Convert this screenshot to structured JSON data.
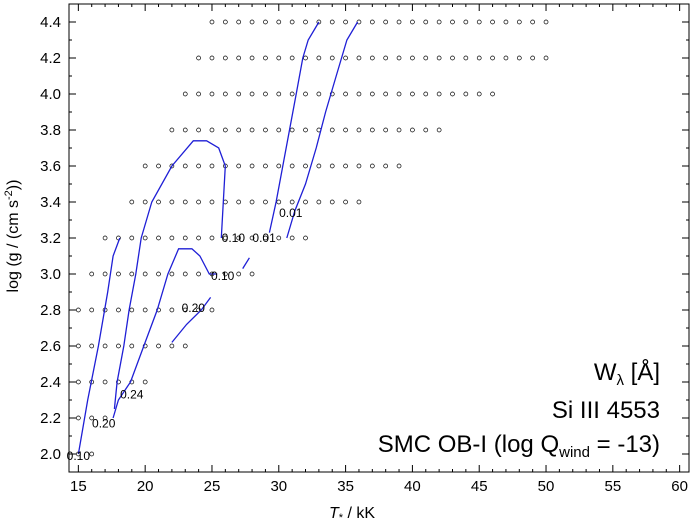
{
  "chart_data": {
    "type": "scatter",
    "xlabel_main": "T",
    "xlabel_sub": "*",
    "xlabel_rest": " / kK",
    "ylabel": "log (g / (cm s",
    "ylabel_sup": "-2",
    "ylabel_end": "))",
    "xlim": [
      14.3,
      60.7
    ],
    "ylim": [
      1.9,
      4.5
    ],
    "xticks": [
      "15",
      "20",
      "25",
      "30",
      "35",
      "40",
      "45",
      "50",
      "55",
      "60"
    ],
    "xtick_values": [
      15,
      20,
      25,
      30,
      35,
      40,
      45,
      50,
      55,
      60
    ],
    "yticks": [
      "2.0",
      "2.2",
      "2.4",
      "2.6",
      "2.8",
      "3.0",
      "3.2",
      "3.4",
      "3.6",
      "3.8",
      "4.0",
      "4.2",
      "4.4"
    ],
    "ytick_values": [
      2.0,
      2.2,
      2.4,
      2.6,
      2.8,
      3.0,
      3.2,
      3.4,
      3.6,
      3.8,
      4.0,
      4.2,
      4.4
    ],
    "grid": false,
    "annotation": {
      "line1_main": "W",
      "line1_sub": "λ",
      "line1_unit": " [Å]",
      "line2": "Si III 4553",
      "line3_main": "SMC OB-I (log Q",
      "line3_sub": "wind",
      "line3_end": " = -13)"
    },
    "grid_points": [
      {
        "y": 4.4,
        "x_start": 25,
        "x_end": 50
      },
      {
        "y": 4.2,
        "x_start": 24,
        "x_end": 50
      },
      {
        "y": 4.0,
        "x_start": 23,
        "x_end": 46
      },
      {
        "y": 3.8,
        "x_start": 22,
        "x_end": 42
      },
      {
        "y": 3.6,
        "x_start": 20,
        "x_end": 39
      },
      {
        "y": 3.4,
        "x_start": 19,
        "x_end": 36
      },
      {
        "y": 3.2,
        "x_start": 17,
        "x_end": 32
      },
      {
        "y": 3.0,
        "x_start": 16,
        "x_end": 28
      },
      {
        "y": 2.8,
        "x_start": 15,
        "x_end": 25
      },
      {
        "y": 2.6,
        "x_start": 15,
        "x_end": 23
      },
      {
        "y": 2.4,
        "x_start": 15,
        "x_end": 20
      },
      {
        "y": 2.2,
        "x_start": 15,
        "x_end": 17
      },
      {
        "y": 2.0,
        "x_start": 15,
        "x_end": 16
      }
    ],
    "series_color": "#1f1fd6",
    "contours": [
      {
        "label": "0.01",
        "points": [
          [
            29.3,
            3.23
          ],
          [
            29.8,
            3.4
          ],
          [
            30.3,
            3.6
          ],
          [
            30.8,
            3.8
          ],
          [
            31.3,
            4.0
          ],
          [
            31.8,
            4.2
          ],
          [
            32.2,
            4.3
          ],
          [
            33.0,
            4.4
          ]
        ]
      },
      {
        "label": "0.01",
        "points": [
          [
            30.6,
            3.2
          ],
          [
            31.2,
            3.35
          ],
          [
            32.0,
            3.5
          ],
          [
            32.8,
            3.7
          ],
          [
            33.5,
            3.9
          ],
          [
            34.3,
            4.1
          ],
          [
            35.1,
            4.3
          ],
          [
            35.9,
            4.4
          ]
        ]
      },
      {
        "label": "0.10",
        "points": [
          [
            25.7,
            3.2
          ],
          [
            26.0,
            3.6
          ],
          [
            25.5,
            3.7
          ],
          [
            24.6,
            3.74
          ],
          [
            23.6,
            3.74
          ],
          [
            22.0,
            3.6
          ],
          [
            20.5,
            3.4
          ],
          [
            19.7,
            3.2
          ],
          [
            19.3,
            3.0
          ],
          [
            18.8,
            2.8
          ],
          [
            18.4,
            2.6
          ],
          [
            17.9,
            2.4
          ],
          [
            17.7,
            2.25
          ]
        ]
      },
      {
        "label": "0.10",
        "points": [
          [
            27.3,
            3.03
          ],
          [
            27.8,
            3.09
          ]
        ]
      },
      {
        "label": "0.10",
        "points": [
          [
            15.0,
            2.0
          ],
          [
            15.7,
            2.3
          ],
          [
            16.5,
            2.6
          ],
          [
            17.2,
            2.9
          ],
          [
            17.6,
            3.1
          ],
          [
            18.1,
            3.2
          ]
        ]
      },
      {
        "label": "0.20",
        "points": [
          [
            25.4,
            3.0
          ],
          [
            24.8,
            3.0
          ],
          [
            24.1,
            3.1
          ],
          [
            23.5,
            3.14
          ],
          [
            22.5,
            3.14
          ],
          [
            21.7,
            3.0
          ],
          [
            20.9,
            2.8
          ],
          [
            19.9,
            2.6
          ],
          [
            18.9,
            2.4
          ],
          [
            18.0,
            2.3
          ],
          [
            17.6,
            2.2
          ]
        ]
      },
      {
        "label": "0.20",
        "points": [
          [
            22.0,
            2.62
          ],
          [
            23.1,
            2.72
          ],
          [
            24.2,
            2.8
          ],
          [
            24.9,
            2.87
          ]
        ]
      }
    ],
    "contour_labels": [
      {
        "text": "0.01",
        "x": 30.9,
        "y": 3.34
      },
      {
        "text": "0.10",
        "x": 26.6,
        "y": 3.2
      },
      {
        "text": "0.01",
        "x": 28.9,
        "y": 3.2
      },
      {
        "text": "0.10",
        "x": 25.8,
        "y": 2.99
      },
      {
        "text": "0.20",
        "x": 23.6,
        "y": 2.81
      },
      {
        "text": "0.24",
        "x": 19.0,
        "y": 2.33
      },
      {
        "text": "0.20",
        "x": 16.9,
        "y": 2.17
      },
      {
        "text": "0.10",
        "x": 15.0,
        "y": 1.99
      }
    ]
  }
}
